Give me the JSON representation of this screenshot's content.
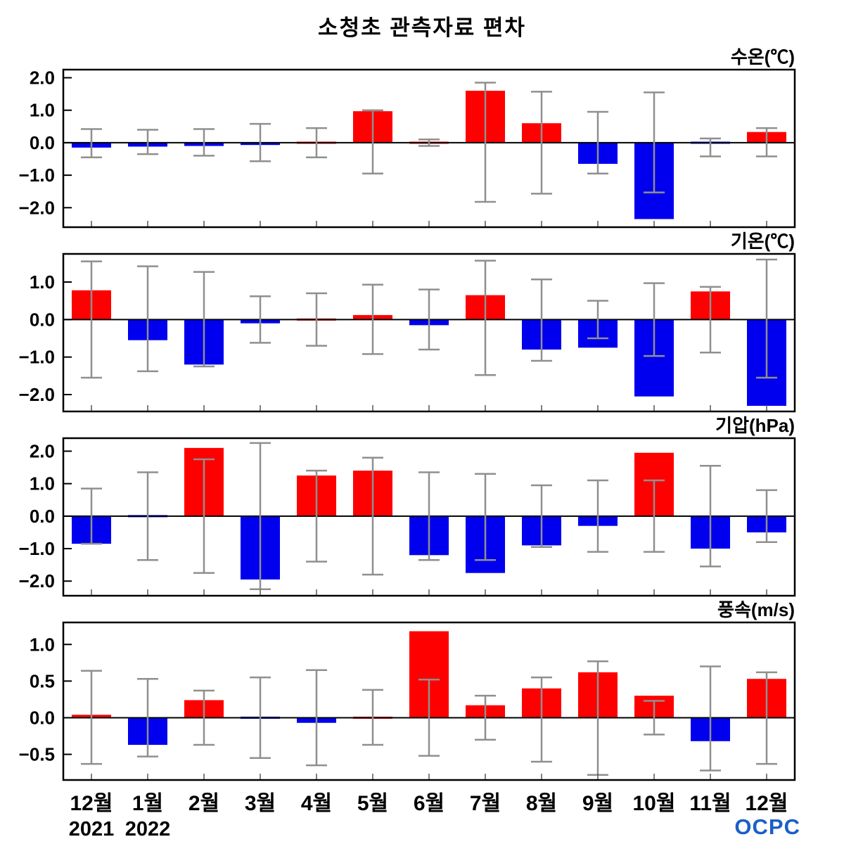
{
  "title": "소청초 관측자료 편차",
  "logo_text": "OCPC",
  "colors": {
    "positive": "#ff0000",
    "negative": "#0000ee",
    "error": "#8f8f8f",
    "axis": "#000000",
    "logo": "#1b5fc8"
  },
  "x_axis": {
    "categories": [
      "12월",
      "1월",
      "2월",
      "3월",
      "4월",
      "5월",
      "6월",
      "7월",
      "8월",
      "9월",
      "10월",
      "11월",
      "12월"
    ],
    "year_labels": [
      {
        "index": 0,
        "text": "2021"
      },
      {
        "index": 1,
        "text": "2022"
      }
    ]
  },
  "chart_data": [
    {
      "type": "bar",
      "title": "수온(℃)",
      "ylim": [
        -2.6,
        2.25
      ],
      "yticks": [
        -2,
        -1,
        0,
        1,
        2
      ],
      "grid": false,
      "values": [
        -0.15,
        -0.12,
        -0.1,
        -0.07,
        0.05,
        0.97,
        0.03,
        1.6,
        0.6,
        -0.65,
        -2.35,
        -0.05,
        0.33
      ],
      "err_low": [
        -0.45,
        -0.35,
        -0.4,
        -0.57,
        -0.45,
        -0.95,
        -0.1,
        -1.82,
        -1.57,
        -0.95,
        -1.53,
        -0.42,
        -0.42
      ],
      "err_high": [
        0.42,
        0.4,
        0.42,
        0.58,
        0.45,
        1.0,
        0.1,
        1.85,
        1.57,
        0.95,
        1.55,
        0.13,
        0.45
      ]
    },
    {
      "type": "bar",
      "title": "기온(℃)",
      "ylim": [
        -2.45,
        1.75
      ],
      "yticks": [
        -2,
        -1,
        0,
        1
      ],
      "grid": false,
      "values": [
        0.78,
        -0.55,
        -1.2,
        -0.1,
        0.05,
        0.12,
        -0.15,
        0.65,
        -0.8,
        -0.75,
        -2.05,
        0.75,
        -2.3
      ],
      "err_low": [
        -1.55,
        -1.38,
        -1.25,
        -0.62,
        -0.7,
        -0.92,
        -0.8,
        -1.48,
        -1.1,
        -0.5,
        -0.97,
        -0.88,
        -1.55
      ],
      "err_high": [
        1.55,
        1.42,
        1.27,
        0.62,
        0.7,
        0.93,
        0.8,
        1.57,
        1.07,
        0.5,
        0.97,
        0.87,
        1.6
      ]
    },
    {
      "type": "bar",
      "title": "기압(hPa)",
      "ylim": [
        -2.45,
        2.4
      ],
      "yticks": [
        -2,
        -1,
        0,
        1,
        2
      ],
      "grid": false,
      "values": [
        -0.85,
        -0.05,
        2.1,
        -1.95,
        1.25,
        1.4,
        -1.2,
        -1.75,
        -0.9,
        -0.3,
        1.95,
        -1.0,
        -0.5
      ],
      "err_low": [
        -0.85,
        -1.35,
        -1.75,
        -2.25,
        -1.4,
        -1.8,
        -1.35,
        -1.35,
        -0.95,
        -1.1,
        -1.1,
        -1.55,
        -0.8
      ],
      "err_high": [
        0.85,
        1.35,
        1.75,
        2.25,
        1.4,
        1.8,
        1.35,
        1.3,
        0.95,
        1.1,
        1.1,
        1.55,
        0.8
      ]
    },
    {
      "type": "bar",
      "title": "풍속(m/s)",
      "ylim": [
        -0.85,
        1.3
      ],
      "yticks": [
        -0.5,
        0,
        0.5,
        1
      ],
      "grid": false,
      "values": [
        0.04,
        -0.37,
        0.24,
        -0.02,
        -0.07,
        0.01,
        1.18,
        0.17,
        0.4,
        0.62,
        0.3,
        -0.32,
        0.53
      ],
      "err_low": [
        -0.63,
        -0.53,
        -0.37,
        -0.55,
        -0.65,
        -0.37,
        -0.52,
        -0.3,
        -0.6,
        -0.78,
        -0.23,
        -0.72,
        -0.63
      ],
      "err_high": [
        0.64,
        0.53,
        0.37,
        0.55,
        0.65,
        0.38,
        0.52,
        0.3,
        0.55,
        0.77,
        0.23,
        0.7,
        0.62
      ]
    }
  ]
}
